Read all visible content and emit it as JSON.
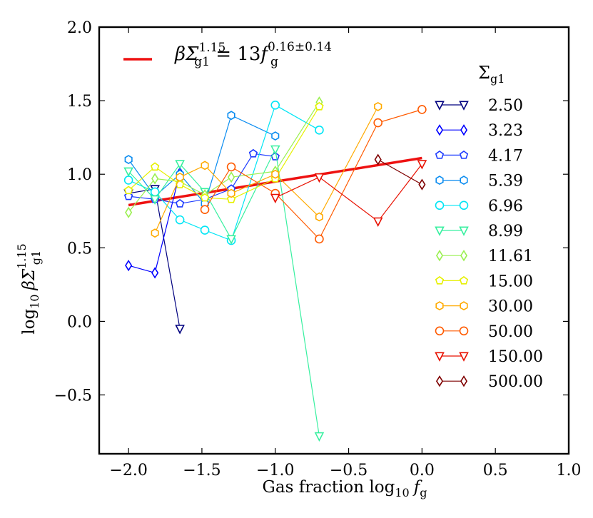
{
  "chart_data": {
    "type": "line",
    "xlabel": "Gas fraction  log",
    "xlabel_sub": "10",
    "xlabel_var": "f",
    "xlabel_var_sub": "g",
    "ylabel": "log",
    "ylabel_sub": "10",
    "ylabel_expr": "βΣ",
    "ylabel_expr_sub": "g1",
    "ylabel_expr_sup": "1.15",
    "xlim": [
      -2.2,
      1.0
    ],
    "ylim": [
      -0.9,
      2.0
    ],
    "xticks": [
      -2.0,
      -1.5,
      -1.0,
      -0.5,
      0.0,
      0.5,
      1.0
    ],
    "xtick_labels": [
      "−2.0",
      "−1.5",
      "−1.0",
      "−0.5",
      "0.0",
      "0.5",
      "1.0"
    ],
    "yticks": [
      -0.5,
      0.0,
      0.5,
      1.0,
      1.5,
      2.0
    ],
    "ytick_labels": [
      "−0.5",
      "0.0",
      "0.5",
      "1.0",
      "1.5",
      "2.0"
    ],
    "legend_title": "Σ",
    "legend_title_sub": "g1",
    "fit": {
      "label": "βΣ",
      "label_sub": "g1",
      "label_sup": "1.15",
      "label_mid": " = 13",
      "label_f": "f",
      "label_f_sub": "g",
      "label_f_sup": "0.16±0.14",
      "color": "#ee1111",
      "x": [
        -2.0,
        0.0
      ],
      "y": [
        0.79,
        1.11
      ]
    },
    "series": [
      {
        "name": "2.50",
        "color": "#00007f",
        "marker": "tri_down",
        "x": [
          -2.0,
          -1.82,
          -1.65
        ],
        "y": [
          0.87,
          0.9,
          -0.05
        ]
      },
      {
        "name": "3.23",
        "color": "#0000ff",
        "marker": "diamond",
        "x": [
          -2.0,
          -1.82,
          -1.65
        ],
        "y": [
          0.38,
          0.33,
          1.01
        ]
      },
      {
        "name": "4.17",
        "color": "#1e3cff",
        "marker": "pentagon",
        "x": [
          -2.0,
          -1.82,
          -1.65,
          -1.48,
          -1.3,
          -1.15,
          -1.0
        ],
        "y": [
          0.85,
          0.83,
          0.8,
          0.83,
          0.9,
          1.14,
          1.12
        ]
      },
      {
        "name": "5.39",
        "color": "#0a8cf0",
        "marker": "hexagon",
        "x": [
          -2.0,
          -1.82,
          -1.65,
          -1.48,
          -1.3,
          -1.0
        ],
        "y": [
          1.1,
          0.85,
          1.0,
          0.8,
          1.4,
          1.26
        ]
      },
      {
        "name": "6.96",
        "color": "#00e5f5",
        "marker": "circle",
        "x": [
          -2.0,
          -1.82,
          -1.65,
          -1.48,
          -1.3,
          -1.0,
          -0.7
        ],
        "y": [
          0.96,
          0.88,
          0.69,
          0.62,
          0.55,
          1.47,
          1.3
        ]
      },
      {
        "name": "8.99",
        "color": "#38f0a0",
        "marker": "tri_down",
        "x": [
          -2.0,
          -1.82,
          -1.65,
          -1.48,
          -1.3,
          -1.0,
          -0.7
        ],
        "y": [
          1.02,
          0.83,
          1.07,
          0.88,
          0.56,
          1.17,
          -0.78
        ]
      },
      {
        "name": "11.61",
        "color": "#9af050",
        "marker": "diamond",
        "x": [
          -2.0,
          -1.82,
          -1.65,
          -1.48,
          -1.3,
          -1.0,
          -0.7
        ],
        "y": [
          0.74,
          0.97,
          0.95,
          0.86,
          0.98,
          1.02,
          1.49
        ]
      },
      {
        "name": "15.00",
        "color": "#e6f000",
        "marker": "pentagon",
        "x": [
          -2.0,
          -1.82,
          -1.65,
          -1.48,
          -1.3,
          -1.0,
          -0.7
        ],
        "y": [
          0.89,
          1.05,
          0.93,
          0.84,
          0.83,
          0.97,
          1.46
        ]
      },
      {
        "name": "30.00",
        "color": "#ffaa00",
        "marker": "hexagon",
        "x": [
          -1.82,
          -1.65,
          -1.48,
          -1.3,
          -1.0,
          -0.7,
          -0.3
        ],
        "y": [
          0.6,
          0.98,
          1.06,
          0.87,
          1.0,
          0.71,
          1.46
        ]
      },
      {
        "name": "50.00",
        "color": "#ff5a00",
        "marker": "circle",
        "x": [
          -1.48,
          -1.3,
          -1.0,
          -0.7,
          -0.3,
          0.0
        ],
        "y": [
          0.76,
          1.05,
          0.87,
          0.56,
          1.35,
          1.44
        ]
      },
      {
        "name": "150.00",
        "color": "#e81000",
        "marker": "tri_down",
        "x": [
          -1.0,
          -0.7,
          -0.3,
          0.0
        ],
        "y": [
          0.84,
          0.98,
          0.68,
          1.07
        ]
      },
      {
        "name": "500.00",
        "color": "#7f0000",
        "marker": "diamond",
        "x": [
          -0.3,
          0.0
        ],
        "y": [
          1.1,
          0.93
        ]
      }
    ]
  }
}
